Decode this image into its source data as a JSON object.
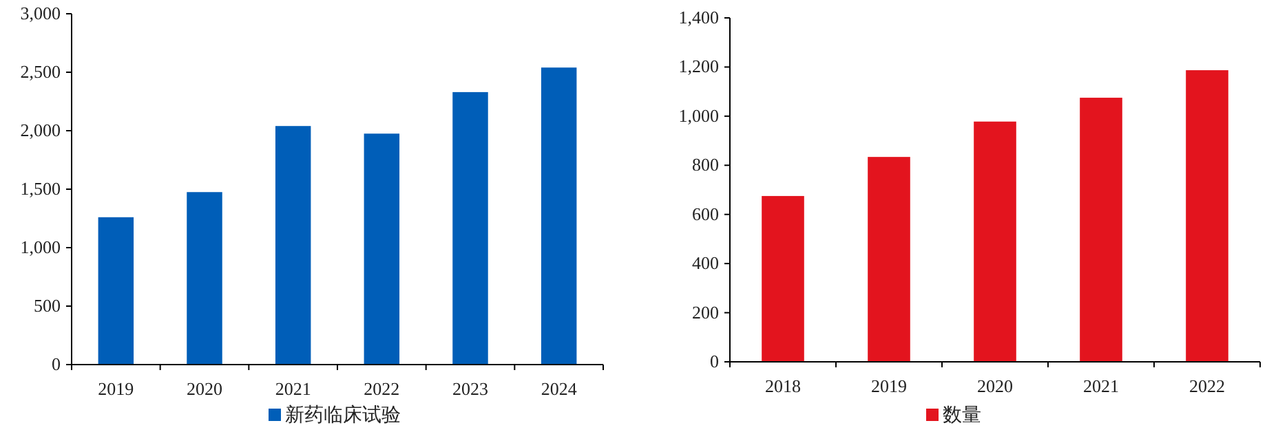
{
  "chart_data": [
    {
      "type": "bar",
      "categories": [
        "2019",
        "2020",
        "2021",
        "2022",
        "2023",
        "2024"
      ],
      "series": [
        {
          "name": "新药临床试验",
          "color": "#005eb8",
          "values": [
            1260,
            1475,
            2040,
            1975,
            2330,
            2540
          ]
        }
      ],
      "ylim": [
        0,
        3000
      ],
      "yticks": [
        {
          "value": 0,
          "label": "0"
        },
        {
          "value": 500,
          "label": "500"
        },
        {
          "value": 1000,
          "label": "1,000"
        },
        {
          "value": 1500,
          "label": "1,500"
        },
        {
          "value": 2000,
          "label": "2,000"
        },
        {
          "value": 2500,
          "label": "2,500"
        },
        {
          "value": 3000,
          "label": "3,000"
        }
      ],
      "legend": "bottom",
      "grid": false
    },
    {
      "type": "bar",
      "categories": [
        "2018",
        "2019",
        "2020",
        "2021",
        "2022"
      ],
      "series": [
        {
          "name": "数量",
          "color": "#e3141e",
          "values": [
            675,
            834,
            978,
            1075,
            1187
          ]
        }
      ],
      "ylim": [
        0,
        1400
      ],
      "yticks": [
        {
          "value": 0,
          "label": "0"
        },
        {
          "value": 200,
          "label": "200"
        },
        {
          "value": 400,
          "label": "400"
        },
        {
          "value": 600,
          "label": "600"
        },
        {
          "value": 800,
          "label": "800"
        },
        {
          "value": 1000,
          "label": "1,000"
        },
        {
          "value": 1200,
          "label": "1,200"
        },
        {
          "value": 1400,
          "label": "1,400"
        }
      ],
      "legend": "bottom",
      "grid": false
    }
  ]
}
